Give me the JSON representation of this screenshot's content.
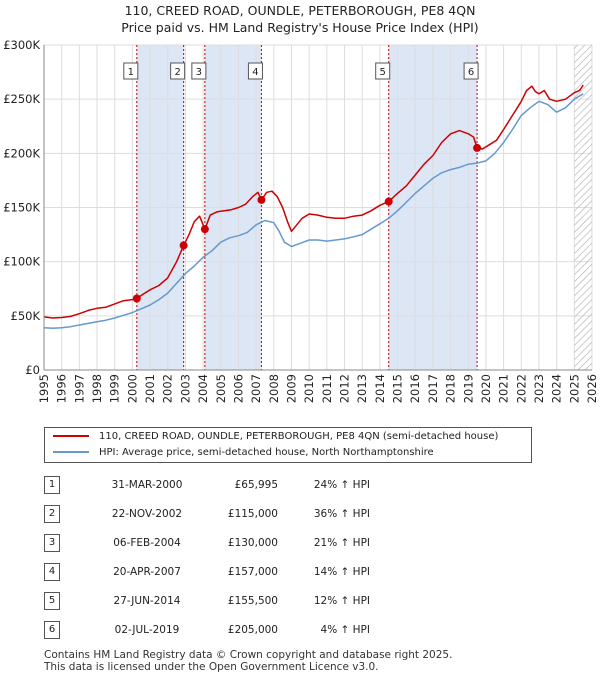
{
  "title_line1": "110, CREED ROAD, OUNDLE, PETERBOROUGH, PE8 4QN",
  "title_line2": "Price paid vs. HM Land Registry's House Price Index (HPI)",
  "colors": {
    "property": "#cc0000",
    "hpi": "#6699cc",
    "band": "#dde6f5",
    "grid": "#dddddd"
  },
  "legend": {
    "property": "110, CREED ROAD, OUNDLE, PETERBOROUGH, PE8 4QN (semi-detached house)",
    "hpi": "HPI: Average price, semi-detached house, North Northamptonshire"
  },
  "sales": [
    {
      "num": "1",
      "date": "31-MAR-2000",
      "price": "£65,995",
      "hpi": "24% ↑ HPI"
    },
    {
      "num": "2",
      "date": "22-NOV-2002",
      "price": "£115,000",
      "hpi": "36% ↑ HPI"
    },
    {
      "num": "3",
      "date": "06-FEB-2004",
      "price": "£130,000",
      "hpi": "21% ↑ HPI"
    },
    {
      "num": "4",
      "date": "20-APR-2007",
      "price": "£157,000",
      "hpi": "14% ↑ HPI"
    },
    {
      "num": "5",
      "date": "27-JUN-2014",
      "price": "£155,500",
      "hpi": "12% ↑ HPI"
    },
    {
      "num": "6",
      "date": "02-JUL-2019",
      "price": "£205,000",
      "hpi": "4% ↑ HPI"
    }
  ],
  "footer": {
    "line1": "Contains HM Land Registry data © Crown copyright and database right 2025.",
    "line2": "This data is licensed under the Open Government Licence v3.0."
  },
  "chart_data": {
    "type": "line",
    "xlim": [
      1995,
      2026
    ],
    "ylim": [
      0,
      300000
    ],
    "yticks": [
      0,
      50000,
      100000,
      150000,
      200000,
      250000,
      300000
    ],
    "ytick_labels": [
      "£0",
      "£50K",
      "£100K",
      "£150K",
      "£200K",
      "£250K",
      "£300K"
    ],
    "xticks": [
      1995,
      1996,
      1997,
      1998,
      1999,
      2000,
      2001,
      2002,
      2003,
      2004,
      2005,
      2006,
      2007,
      2008,
      2009,
      2010,
      2011,
      2012,
      2013,
      2014,
      2015,
      2016,
      2017,
      2018,
      2019,
      2020,
      2021,
      2022,
      2023,
      2024,
      2025,
      2026
    ],
    "xtick_labels": [
      "1995",
      "1996",
      "1997",
      "1998",
      "1999",
      "2000",
      "2001",
      "2002",
      "2003",
      "2004",
      "2005",
      "2006",
      "2007",
      "2008",
      "2009",
      "2010",
      "2011",
      "2012",
      "2013",
      "2014",
      "2015",
      "2016",
      "2017",
      "2018",
      "2019",
      "2020",
      "2021",
      "2022",
      "2023",
      "2024",
      "2025",
      "2026"
    ],
    "grid": true,
    "shaded_bands": [
      [
        2000.25,
        2002.9
      ],
      [
        2004.1,
        2007.3
      ],
      [
        2014.5,
        2019.5
      ]
    ],
    "hatched_from": 2025.0,
    "markers": [
      {
        "label": "1",
        "x": 2000.25,
        "y": 65995
      },
      {
        "label": "2",
        "x": 2002.9,
        "y": 115000
      },
      {
        "label": "3",
        "x": 2004.1,
        "y": 130000
      },
      {
        "label": "4",
        "x": 2007.3,
        "y": 157000
      },
      {
        "label": "5",
        "x": 2014.5,
        "y": 155500
      },
      {
        "label": "6",
        "x": 2019.5,
        "y": 205000
      }
    ],
    "series": [
      {
        "name": "110, CREED ROAD, OUNDLE, PETERBOROUGH, PE8 4QN (semi-detached house)",
        "x": [
          1995,
          1995.5,
          1996,
          1996.5,
          1997,
          1997.5,
          1998,
          1998.5,
          1999,
          1999.5,
          2000,
          2000.25,
          2000.6,
          2001,
          2001.5,
          2002,
          2002.5,
          2002.9,
          2003.2,
          2003.5,
          2003.8,
          2004.1,
          2004.4,
          2004.8,
          2005.2,
          2005.6,
          2006,
          2006.4,
          2006.8,
          2007.1,
          2007.3,
          2007.6,
          2007.9,
          2008.2,
          2008.5,
          2008.8,
          2009.0,
          2009.3,
          2009.6,
          2010,
          2010.5,
          2011,
          2011.5,
          2012,
          2012.5,
          2013,
          2013.5,
          2014,
          2014.5,
          2015,
          2015.5,
          2016,
          2016.5,
          2017,
          2017.5,
          2018,
          2018.5,
          2019,
          2019.3,
          2019.5,
          2019.8,
          2020.2,
          2020.6,
          2021,
          2021.5,
          2022,
          2022.3,
          2022.6,
          2022.8,
          2023.0,
          2023.3,
          2023.6,
          2024,
          2024.5,
          2025,
          2025.3,
          2025.5
        ],
        "values": [
          49000,
          48000,
          48500,
          49500,
          52000,
          55000,
          57000,
          58000,
          61000,
          64000,
          65000,
          65995,
          70000,
          74000,
          78000,
          85000,
          100000,
          115000,
          125000,
          137000,
          142000,
          130000,
          143000,
          146000,
          147000,
          148000,
          150000,
          153000,
          160000,
          164000,
          157000,
          164000,
          165000,
          160000,
          150000,
          136000,
          128000,
          134000,
          140000,
          144000,
          143000,
          141000,
          140000,
          140000,
          142000,
          143000,
          147000,
          152000,
          155500,
          163000,
          170000,
          180000,
          190000,
          198000,
          210000,
          218000,
          221000,
          218000,
          215000,
          205000,
          204000,
          208000,
          212000,
          222000,
          235000,
          248000,
          258000,
          262000,
          257000,
          255000,
          258000,
          250000,
          248000,
          250000,
          256000,
          258000,
          263000
        ]
      },
      {
        "name": "HPI: Average price, semi-detached house, North Northamptonshire",
        "x": [
          1995,
          1995.5,
          1996,
          1996.5,
          1997,
          1997.5,
          1998,
          1998.5,
          1999,
          1999.5,
          2000,
          2000.5,
          2001,
          2001.5,
          2002,
          2002.5,
          2003,
          2003.5,
          2004,
          2004.5,
          2005,
          2005.5,
          2006,
          2006.5,
          2007,
          2007.5,
          2008,
          2008.3,
          2008.6,
          2009.0,
          2009.5,
          2010,
          2010.5,
          2011,
          2011.5,
          2012,
          2012.5,
          2013,
          2013.5,
          2014,
          2014.5,
          2015,
          2015.5,
          2016,
          2016.5,
          2017,
          2017.5,
          2018,
          2018.5,
          2019,
          2019.5,
          2020,
          2020.5,
          2021,
          2021.5,
          2022,
          2022.5,
          2023,
          2023.5,
          2024,
          2024.5,
          2025,
          2025.5
        ],
        "values": [
          39000,
          38500,
          39000,
          40000,
          41500,
          43000,
          44500,
          46000,
          48000,
          50500,
          53000,
          56500,
          60000,
          65000,
          71000,
          80000,
          89000,
          96000,
          104000,
          110000,
          118000,
          122000,
          124000,
          127000,
          134000,
          138000,
          136000,
          128000,
          118000,
          114000,
          117000,
          120000,
          120000,
          119000,
          120000,
          121000,
          123000,
          125000,
          130000,
          135000,
          140000,
          147000,
          155000,
          163000,
          170000,
          177000,
          182000,
          185000,
          187000,
          190000,
          191000,
          193000,
          200000,
          210000,
          222000,
          235000,
          242000,
          248000,
          245000,
          238000,
          242000,
          250000,
          255000
        ]
      }
    ]
  }
}
